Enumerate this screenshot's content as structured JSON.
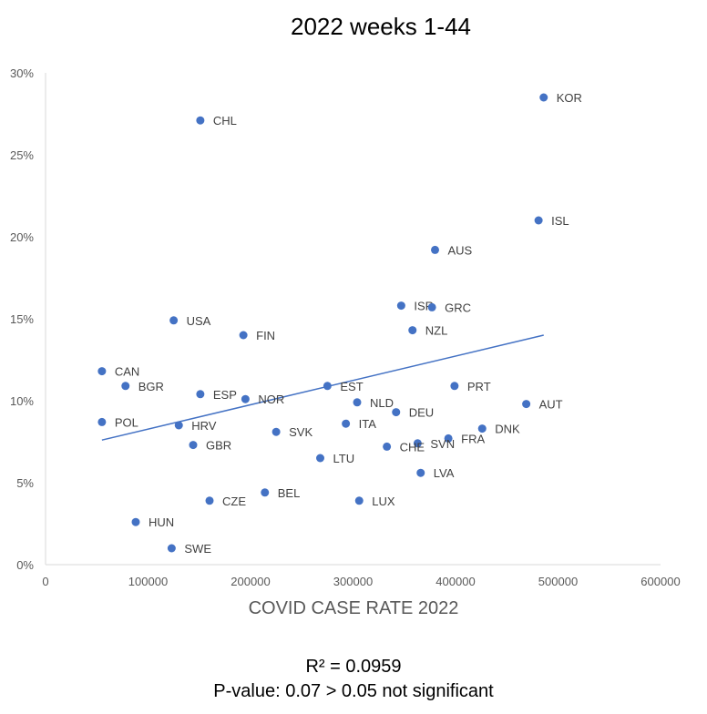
{
  "chart_data": {
    "type": "scatter",
    "title": "2022 weeks 1-44",
    "xlabel": "COVID CASE RATE 2022",
    "ylabel": "",
    "xlim": [
      0,
      600000
    ],
    "ylim": [
      0,
      0.3
    ],
    "x_ticks": [
      "0",
      "100000",
      "200000",
      "300000",
      "400000",
      "500000",
      "600000"
    ],
    "y_ticks": [
      "0%",
      "5%",
      "10%",
      "15%",
      "20%",
      "25%",
      "30%"
    ],
    "grid": false,
    "legend": "none",
    "marker_color": "#4472C4",
    "trendline": {
      "type": "linear",
      "x_range": [
        55000,
        486000
      ],
      "y_start": 0.076,
      "y_end": 0.14
    },
    "points": [
      {
        "label": "KOR",
        "x": 486000,
        "y": 0.285
      },
      {
        "label": "CHL",
        "x": 151000,
        "y": 0.271
      },
      {
        "label": "ISL",
        "x": 481000,
        "y": 0.21
      },
      {
        "label": "AUS",
        "x": 380000,
        "y": 0.192
      },
      {
        "label": "ISR",
        "x": 347000,
        "y": 0.158
      },
      {
        "label": "GRC",
        "x": 377000,
        "y": 0.157
      },
      {
        "label": "USA",
        "x": 125000,
        "y": 0.149
      },
      {
        "label": "NZL",
        "x": 358000,
        "y": 0.143
      },
      {
        "label": "FIN",
        "x": 193000,
        "y": 0.14
      },
      {
        "label": "CAN",
        "x": 55000,
        "y": 0.118
      },
      {
        "label": "BGR",
        "x": 78000,
        "y": 0.109
      },
      {
        "label": "EST",
        "x": 275000,
        "y": 0.109
      },
      {
        "label": "PRT",
        "x": 399000,
        "y": 0.109
      },
      {
        "label": "ESP",
        "x": 151000,
        "y": 0.104
      },
      {
        "label": "NOR",
        "x": 195000,
        "y": 0.101
      },
      {
        "label": "NLD",
        "x": 304000,
        "y": 0.099
      },
      {
        "label": "AUT",
        "x": 469000,
        "y": 0.098
      },
      {
        "label": "DEU",
        "x": 342000,
        "y": 0.093
      },
      {
        "label": "POL",
        "x": 55000,
        "y": 0.087
      },
      {
        "label": "ITA",
        "x": 293000,
        "y": 0.086
      },
      {
        "label": "HRV",
        "x": 130000,
        "y": 0.085
      },
      {
        "label": "DNK",
        "x": 426000,
        "y": 0.083
      },
      {
        "label": "SVK",
        "x": 225000,
        "y": 0.081
      },
      {
        "label": "FRA",
        "x": 393000,
        "y": 0.077
      },
      {
        "label": "SVN",
        "x": 363000,
        "y": 0.074
      },
      {
        "label": "GBR",
        "x": 144000,
        "y": 0.073
      },
      {
        "label": "CHE",
        "x": 333000,
        "y": 0.072
      },
      {
        "label": "LTU",
        "x": 268000,
        "y": 0.065
      },
      {
        "label": "LVA",
        "x": 366000,
        "y": 0.056
      },
      {
        "label": "BEL",
        "x": 214000,
        "y": 0.044
      },
      {
        "label": "CZE",
        "x": 160000,
        "y": 0.039
      },
      {
        "label": "LUX",
        "x": 306000,
        "y": 0.039
      },
      {
        "label": "HUN",
        "x": 88000,
        "y": 0.026
      },
      {
        "label": "SWE",
        "x": 123000,
        "y": 0.01
      }
    ]
  },
  "footer": {
    "r_squared": "R² = 0.0959",
    "p_value": "P-value: 0.07 > 0.05 not significant"
  }
}
